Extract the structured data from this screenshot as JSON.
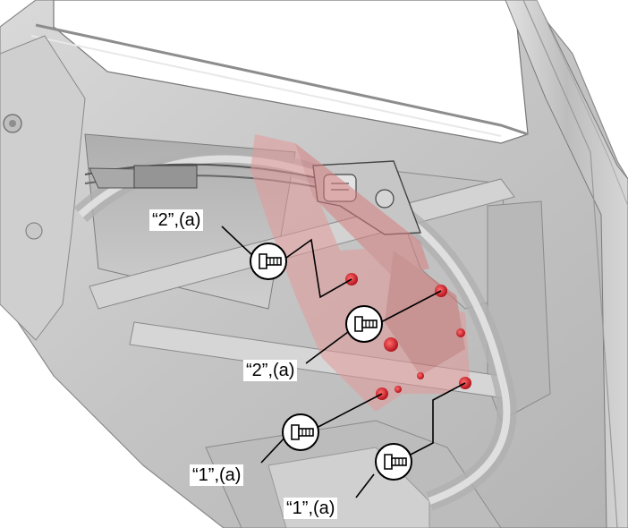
{
  "callouts": [
    {
      "id": "bolt-2a-upper",
      "label": "“2”,(a)"
    },
    {
      "id": "bolt-2a-middle",
      "label": "“2”,(a)"
    },
    {
      "id": "bolt-1a-left",
      "label": "“1”,(a)"
    },
    {
      "id": "bolt-1a-right",
      "label": "“1”,(a)"
    }
  ],
  "colors": {
    "panel_gray": "#c8c8c8",
    "panel_dark": "#9a9a9a",
    "highlight_red": "#d9343c",
    "highlight_pink": "#e6a8a8",
    "line": "#000000"
  },
  "icons": {
    "bolt": "bolt-icon",
    "fastener_point": "red-fastener-marker"
  }
}
